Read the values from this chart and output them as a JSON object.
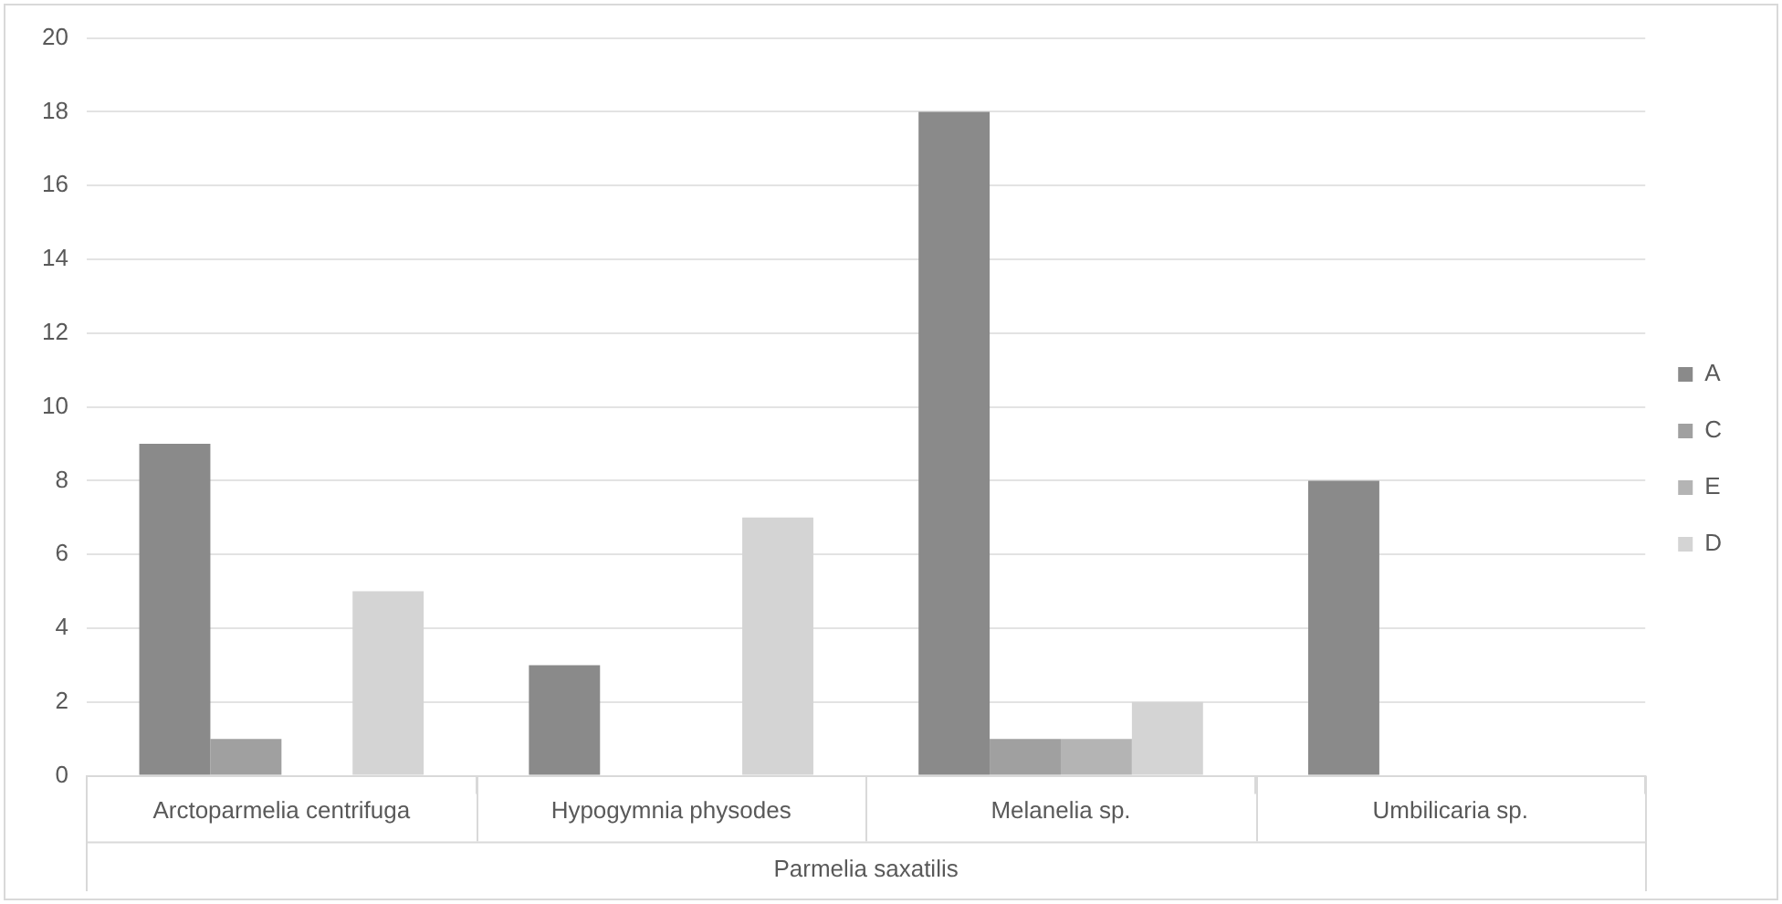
{
  "chart_data": {
    "type": "bar",
    "categories": [
      "Arctoparmelia centrifuga",
      "Hypogymnia physodes",
      "Melanelia sp.",
      "Umbilicaria sp."
    ],
    "xlabel": "Parmelia saxatilis",
    "series": [
      {
        "name": "A",
        "color": "#8a8a8a",
        "values": [
          9,
          3,
          18,
          8
        ]
      },
      {
        "name": "C",
        "color": "#a0a0a0",
        "values": [
          1,
          null,
          1,
          null
        ]
      },
      {
        "name": "E",
        "color": "#b4b4b4",
        "values": [
          null,
          null,
          1,
          null
        ]
      },
      {
        "name": "D",
        "color": "#d4d4d4",
        "values": [
          5,
          7,
          2,
          null
        ]
      }
    ],
    "ylim": [
      0,
      20
    ],
    "yticks": [
      0,
      2,
      4,
      6,
      8,
      10,
      12,
      14,
      16,
      18,
      20
    ],
    "grid": "y",
    "legend": "right"
  }
}
